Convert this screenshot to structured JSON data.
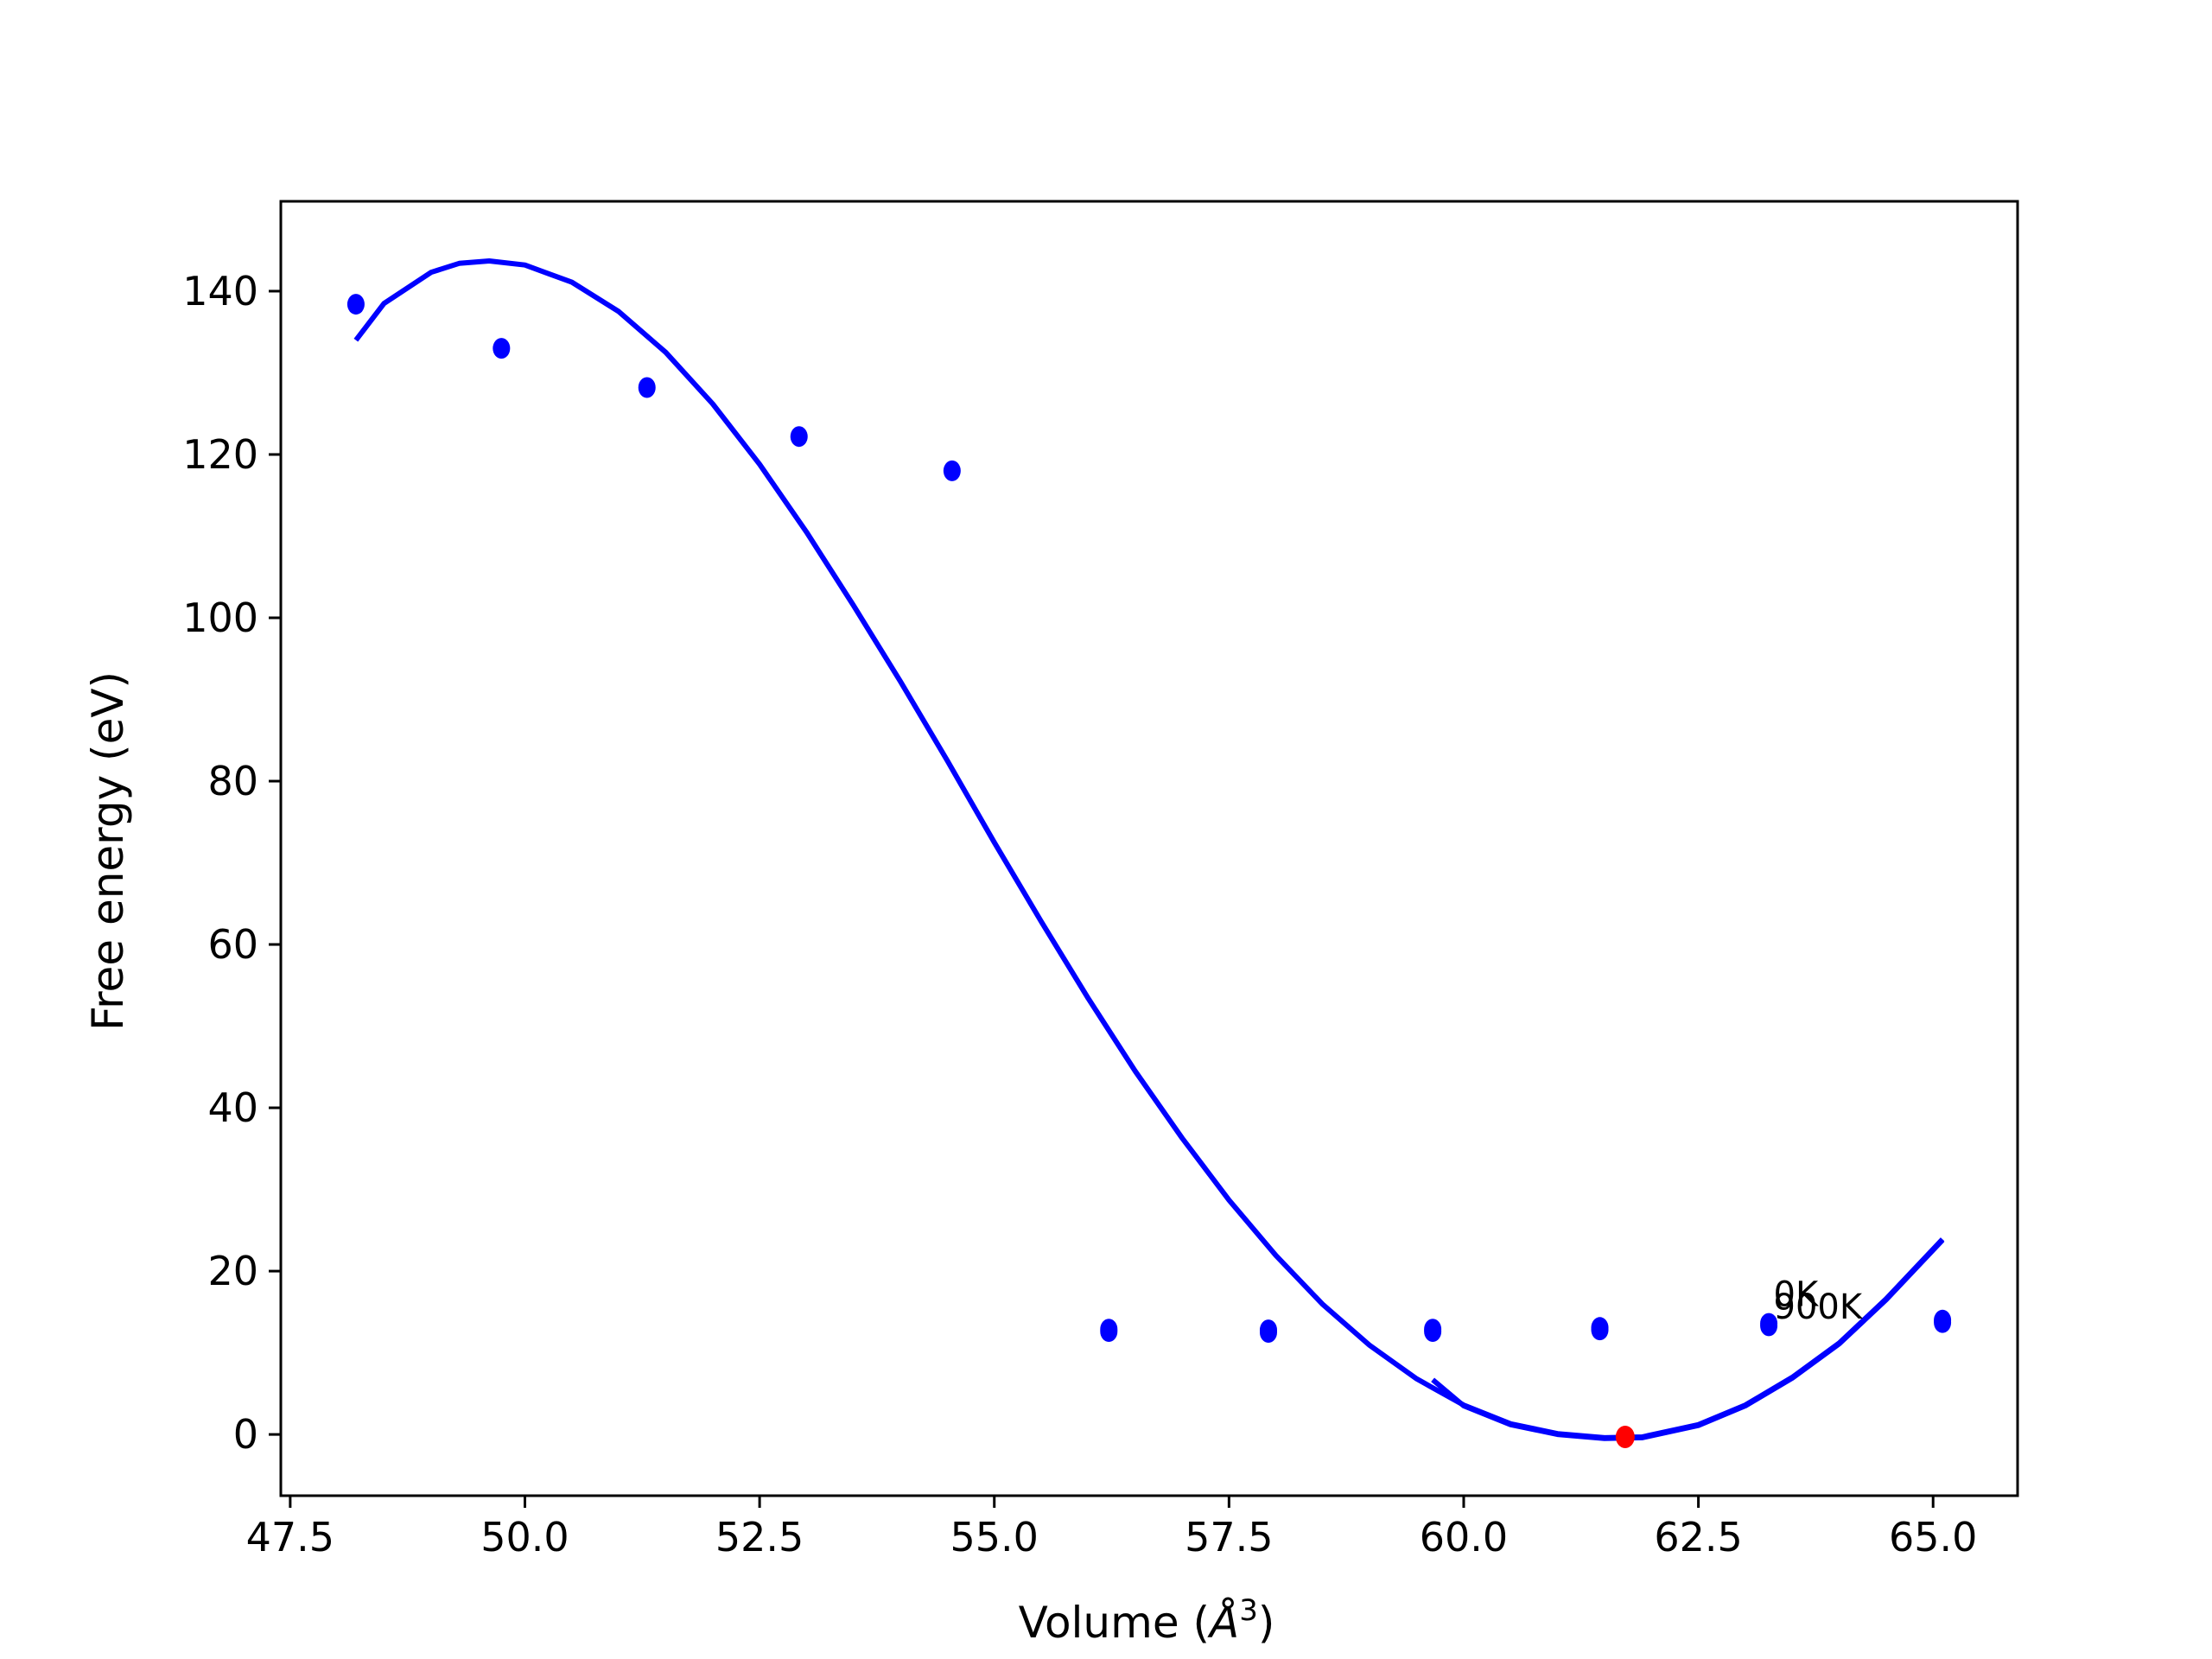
{
  "chart_data": {
    "type": "scatter",
    "xlabel": "Volume (",
    "xlabel_symbol": "Å",
    "xlabel_exp": "3",
    "xlabel_close": ")",
    "ylabel": "Free energy (eV)",
    "xlim": [
      47.4,
      65.9
    ],
    "ylim": [
      -7.5,
      151
    ],
    "x_ticks": [
      47.5,
      50.0,
      52.5,
      55.0,
      57.5,
      60.0,
      62.5,
      65.0
    ],
    "x_tick_labels": [
      "47.5",
      "50.0",
      "52.5",
      "55.0",
      "57.5",
      "60.0",
      "62.5",
      "65.0"
    ],
    "y_ticks": [
      0,
      20,
      40,
      60,
      80,
      100,
      120,
      140
    ],
    "y_tick_labels": [
      "0",
      "20",
      "40",
      "60",
      "80",
      "100",
      "120",
      "140"
    ],
    "grid": false,
    "series": [
      {
        "kind": "points",
        "color": "#0000ff",
        "x": [
          48.2,
          49.75,
          51.3,
          52.92,
          54.55,
          56.22,
          57.92,
          59.67,
          61.45,
          63.25,
          65.1
        ],
        "y": [
          138.4,
          133.0,
          128.2,
          122.2,
          118.0,
          12.9,
          12.8,
          12.9,
          13.1,
          13.6,
          14.0
        ]
      },
      {
        "kind": "points",
        "color": "#0000ff",
        "x": [
          56.22,
          57.92,
          59.67,
          61.45,
          63.25,
          65.1
        ],
        "y": [
          12.6,
          12.5,
          12.6,
          12.8,
          13.3,
          13.7
        ]
      },
      {
        "kind": "curve",
        "color": "#0000ff",
        "x": [
          48.2,
          48.5,
          49.0,
          49.3,
          49.62,
          50.0,
          50.5,
          51.0,
          51.5,
          52.0,
          52.5,
          53.0,
          53.5,
          54.0,
          54.5,
          55.0,
          55.5,
          56.0,
          56.5,
          57.0,
          57.5,
          58.0,
          58.5,
          59.0,
          59.5,
          60.0,
          60.5,
          61.0,
          61.5,
          61.9,
          62.5,
          63.0,
          63.5,
          64.0,
          64.5,
          65.1
        ],
        "y": [
          134.0,
          138.5,
          142.3,
          143.4,
          143.7,
          143.2,
          141.1,
          137.5,
          132.5,
          126.2,
          118.8,
          110.5,
          101.5,
          92.2,
          82.5,
          72.5,
          62.8,
          53.4,
          44.5,
          36.3,
          28.7,
          21.9,
          15.9,
          10.9,
          6.8,
          3.6,
          1.3,
          0.1,
          -0.4,
          -0.3,
          1.2,
          3.6,
          7.0,
          11.2,
          16.6,
          23.9
        ]
      },
      {
        "kind": "curve",
        "color": "#0000ff",
        "x": [
          59.67,
          60.0,
          60.5,
          61.0,
          61.5,
          61.9,
          62.5,
          63.0,
          63.5,
          64.0,
          64.5,
          65.1
        ],
        "y": [
          6.7,
          3.5,
          1.2,
          0.0,
          -0.5,
          -0.4,
          1.1,
          3.5,
          6.9,
          11.1,
          16.5,
          23.8
        ]
      }
    ],
    "minimum_point": {
      "x": 61.72,
      "y": -0.3,
      "color": "#ff0000"
    },
    "annotations": [
      {
        "text": "0K",
        "x": 63.3,
        "y": 15.7
      },
      {
        "text": "900K",
        "x": 63.3,
        "y": 14.2
      }
    ]
  }
}
